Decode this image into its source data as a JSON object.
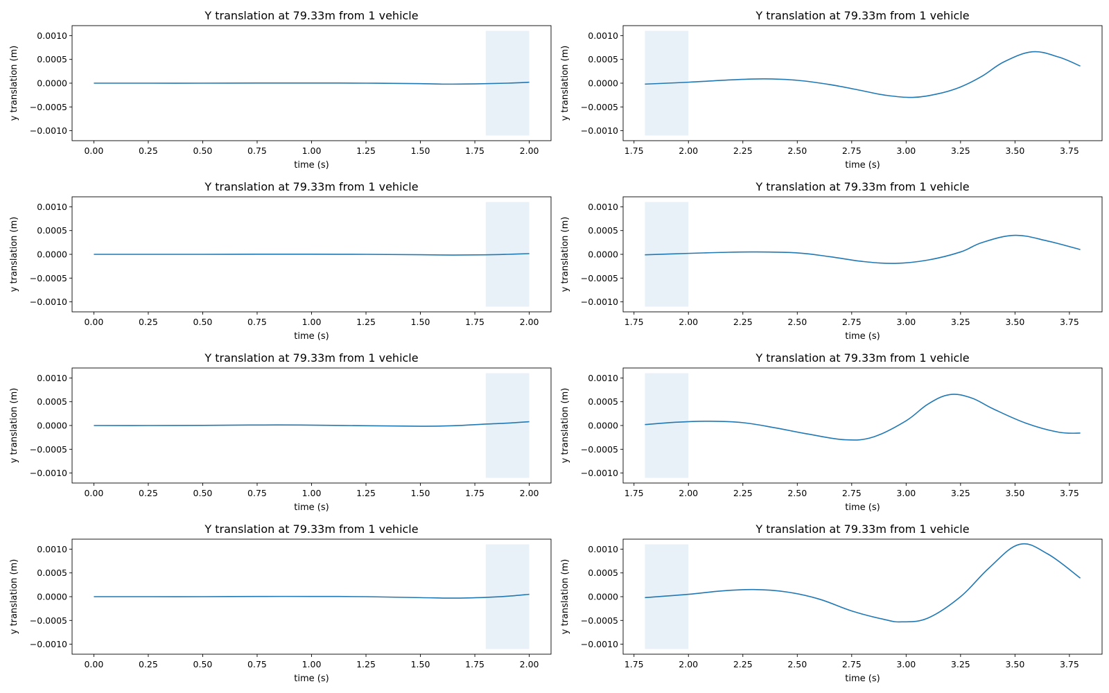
{
  "figure": {
    "rows": 4,
    "cols": 2,
    "line_color": "#1f77b4",
    "shade_color": "#1f77b4"
  },
  "chart_data": [
    {
      "type": "line",
      "title": "Y translation at 79.33m from 1 vehicle",
      "xlabel": "time (s)",
      "ylabel": "y translation (m)",
      "xlim": [
        -0.1,
        2.1
      ],
      "ylim": [
        -0.00121,
        0.00121
      ],
      "xticks": [
        0.0,
        0.25,
        0.5,
        0.75,
        1.0,
        1.25,
        1.5,
        1.75,
        2.0
      ],
      "xtick_labels": [
        "0.00",
        "0.25",
        "0.50",
        "0.75",
        "1.00",
        "1.25",
        "1.50",
        "1.75",
        "2.00"
      ],
      "yticks": [
        0.001,
        0.0005,
        0,
        -0.0005,
        -0.001
      ],
      "ytick_labels": [
        "0.0010",
        "0.0005",
        "0.0000",
        "−0.0005",
        "−0.0010"
      ],
      "shaded_region": {
        "x": [
          1.8,
          2.0
        ],
        "y": [
          -0.0011,
          0.0011
        ]
      },
      "x": [
        0.0,
        0.25,
        0.5,
        0.75,
        1.0,
        1.25,
        1.5,
        1.6,
        1.75,
        1.9,
        2.0
      ],
      "y": [
        0.0,
        0.0,
        0.0,
        3e-06,
        3e-06,
        0.0,
        -1e-05,
        -2e-05,
        -1.5e-05,
        0.0,
        2e-05
      ]
    },
    {
      "type": "line",
      "title": "Y translation at 79.33m from 1 vehicle",
      "xlabel": "time (s)",
      "ylabel": "y translation (m)",
      "xlim": [
        1.7,
        3.9
      ],
      "ylim": [
        -0.00121,
        0.00121
      ],
      "xticks": [
        1.75,
        2.0,
        2.25,
        2.5,
        2.75,
        3.0,
        3.25,
        3.5,
        3.75
      ],
      "xtick_labels": [
        "1.75",
        "2.00",
        "2.25",
        "2.50",
        "2.75",
        "3.00",
        "3.25",
        "3.50",
        "3.75"
      ],
      "yticks": [
        0.001,
        0.0005,
        0,
        -0.0005,
        -0.001
      ],
      "ytick_labels": [
        "0.0010",
        "0.0005",
        "0.0000",
        "−0.0005",
        "−0.0010"
      ],
      "shaded_region": {
        "x": [
          1.8,
          2.0
        ],
        "y": [
          -0.0011,
          0.0011
        ]
      },
      "x": [
        1.8,
        2.0,
        2.2,
        2.35,
        2.5,
        2.65,
        2.8,
        2.9,
        3.03,
        3.15,
        3.25,
        3.35,
        3.45,
        3.58,
        3.7,
        3.8
      ],
      "y": [
        -2e-05,
        2e-05,
        7e-05,
        9e-05,
        6e-05,
        -3e-05,
        -0.00016,
        -0.00025,
        -0.0003,
        -0.00022,
        -8e-05,
        0.00015,
        0.00045,
        0.00066,
        0.00055,
        0.00036
      ]
    },
    {
      "type": "line",
      "title": "Y translation at 79.33m from 1 vehicle",
      "xlabel": "time (s)",
      "ylabel": "y translation (m)",
      "xlim": [
        -0.1,
        2.1
      ],
      "ylim": [
        -0.00121,
        0.00121
      ],
      "xticks": [
        0.0,
        0.25,
        0.5,
        0.75,
        1.0,
        1.25,
        1.5,
        1.75,
        2.0
      ],
      "xtick_labels": [
        "0.00",
        "0.25",
        "0.50",
        "0.75",
        "1.00",
        "1.25",
        "1.50",
        "1.75",
        "2.00"
      ],
      "yticks": [
        0.001,
        0.0005,
        0,
        -0.0005,
        -0.001
      ],
      "ytick_labels": [
        "0.0010",
        "0.0005",
        "0.0000",
        "−0.0005",
        "−0.0010"
      ],
      "shaded_region": {
        "x": [
          1.8,
          2.0
        ],
        "y": [
          -0.0011,
          0.0011
        ]
      },
      "x": [
        0.0,
        0.25,
        0.5,
        0.75,
        1.0,
        1.25,
        1.5,
        1.65,
        1.8,
        1.9,
        2.0
      ],
      "y": [
        0.0,
        0.0,
        0.0,
        2e-06,
        2e-06,
        0.0,
        -8e-06,
        -1.5e-05,
        -1e-05,
        0.0,
        1.5e-05
      ]
    },
    {
      "type": "line",
      "title": "Y translation at 79.33m from 1 vehicle",
      "xlabel": "time (s)",
      "ylabel": "y translation (m)",
      "xlim": [
        1.7,
        3.9
      ],
      "ylim": [
        -0.00121,
        0.00121
      ],
      "xticks": [
        1.75,
        2.0,
        2.25,
        2.5,
        2.75,
        3.0,
        3.25,
        3.5,
        3.75
      ],
      "xtick_labels": [
        "1.75",
        "2.00",
        "2.25",
        "2.50",
        "2.75",
        "3.00",
        "3.25",
        "3.50",
        "3.75"
      ],
      "yticks": [
        0.001,
        0.0005,
        0,
        -0.0005,
        -0.001
      ],
      "ytick_labels": [
        "0.0010",
        "0.0005",
        "0.0000",
        "−0.0005",
        "−0.0010"
      ],
      "shaded_region": {
        "x": [
          1.8,
          2.0
        ],
        "y": [
          -0.0011,
          0.0011
        ]
      },
      "x": [
        1.8,
        2.0,
        2.15,
        2.3,
        2.5,
        2.65,
        2.8,
        2.95,
        3.1,
        3.25,
        3.35,
        3.5,
        3.65,
        3.8
      ],
      "y": [
        -1e-05,
        2e-05,
        4e-05,
        5e-05,
        3e-05,
        -5e-05,
        -0.00015,
        -0.00019,
        -0.00012,
        5e-05,
        0.00025,
        0.0004,
        0.00028,
        0.0001
      ]
    },
    {
      "type": "line",
      "title": "Y translation at 79.33m from 1 vehicle",
      "xlabel": "time (s)",
      "ylabel": "y translation (m)",
      "xlim": [
        -0.1,
        2.1
      ],
      "ylim": [
        -0.00121,
        0.00121
      ],
      "xticks": [
        0.0,
        0.25,
        0.5,
        0.75,
        1.0,
        1.25,
        1.5,
        1.75,
        2.0
      ],
      "xtick_labels": [
        "0.00",
        "0.25",
        "0.50",
        "0.75",
        "1.00",
        "1.25",
        "1.50",
        "1.75",
        "2.00"
      ],
      "yticks": [
        0.001,
        0.0005,
        0,
        -0.0005,
        -0.001
      ],
      "ytick_labels": [
        "0.0010",
        "0.0005",
        "0.0000",
        "−0.0005",
        "−0.0010"
      ],
      "shaded_region": {
        "x": [
          1.8,
          2.0
        ],
        "y": [
          -0.0011,
          0.0011
        ]
      },
      "x": [
        0.0,
        0.25,
        0.5,
        0.75,
        0.95,
        1.25,
        1.5,
        1.65,
        1.8,
        1.9,
        2.0
      ],
      "y": [
        0.0,
        0.0,
        3e-06,
        1e-05,
        1e-05,
        -5e-06,
        -1.5e-05,
        -5e-06,
        3e-05,
        5e-05,
        8e-05
      ]
    },
    {
      "type": "line",
      "title": "Y translation at 79.33m from 1 vehicle",
      "xlabel": "time (s)",
      "ylabel": "y translation (m)",
      "xlim": [
        1.7,
        3.9
      ],
      "ylim": [
        -0.00121,
        0.00121
      ],
      "xticks": [
        1.75,
        2.0,
        2.25,
        2.5,
        2.75,
        3.0,
        3.25,
        3.5,
        3.75
      ],
      "xtick_labels": [
        "1.75",
        "2.00",
        "2.25",
        "2.50",
        "2.75",
        "3.00",
        "3.25",
        "3.50",
        "3.75"
      ],
      "yticks": [
        0.001,
        0.0005,
        0,
        -0.0005,
        -0.001
      ],
      "ytick_labels": [
        "0.0010",
        "0.0005",
        "0.0000",
        "−0.0005",
        "−0.0010"
      ],
      "shaded_region": {
        "x": [
          1.8,
          2.0
        ],
        "y": [
          -0.0011,
          0.0011
        ]
      },
      "x": [
        1.8,
        1.95,
        2.1,
        2.25,
        2.4,
        2.55,
        2.72,
        2.85,
        3.0,
        3.1,
        3.2,
        3.3,
        3.4,
        3.55,
        3.7,
        3.8
      ],
      "y": [
        2e-05,
        7e-05,
        9e-05,
        6e-05,
        -5e-05,
        -0.00018,
        -0.0003,
        -0.00024,
        0.0001,
        0.00045,
        0.00065,
        0.00058,
        0.00035,
        5e-05,
        -0.00014,
        -0.00016
      ]
    },
    {
      "type": "line",
      "title": "Y translation at 79.33m from 1 vehicle",
      "xlabel": "time (s)",
      "ylabel": "y translation (m)",
      "xlim": [
        -0.1,
        2.1
      ],
      "ylim": [
        -0.00121,
        0.00121
      ],
      "xticks": [
        0.0,
        0.25,
        0.5,
        0.75,
        1.0,
        1.25,
        1.5,
        1.75,
        2.0
      ],
      "xtick_labels": [
        "0.00",
        "0.25",
        "0.50",
        "0.75",
        "1.00",
        "1.25",
        "1.50",
        "1.75",
        "2.00"
      ],
      "yticks": [
        0.001,
        0.0005,
        0,
        -0.0005,
        -0.001
      ],
      "ytick_labels": [
        "0.0010",
        "0.0005",
        "0.0000",
        "−0.0005",
        "−0.0010"
      ],
      "shaded_region": {
        "x": [
          1.8,
          2.0
        ],
        "y": [
          -0.0011,
          0.0011
        ]
      },
      "x": [
        0.0,
        0.25,
        0.5,
        0.75,
        1.0,
        1.25,
        1.5,
        1.65,
        1.8,
        1.9,
        2.0
      ],
      "y": [
        0.0,
        0.0,
        0.0,
        5e-06,
        5e-06,
        0.0,
        -2e-05,
        -3e-05,
        -1.5e-05,
        1e-05,
        5e-05
      ]
    },
    {
      "type": "line",
      "title": "Y translation at 79.33m from 1 vehicle",
      "xlabel": "time (s)",
      "ylabel": "y translation (m)",
      "xlim": [
        1.7,
        3.9
      ],
      "ylim": [
        -0.00121,
        0.00121
      ],
      "xticks": [
        1.75,
        2.0,
        2.25,
        2.5,
        2.75,
        3.0,
        3.25,
        3.5,
        3.75
      ],
      "xtick_labels": [
        "1.75",
        "2.00",
        "2.25",
        "2.50",
        "2.75",
        "3.00",
        "3.25",
        "3.50",
        "3.75"
      ],
      "yticks": [
        0.001,
        0.0005,
        0,
        -0.0005,
        -0.001
      ],
      "ytick_labels": [
        "0.0010",
        "0.0005",
        "0.0000",
        "−0.0005",
        "−0.0010"
      ],
      "shaded_region": {
        "x": [
          1.8,
          2.0
        ],
        "y": [
          -0.0011,
          0.0011
        ]
      },
      "x": [
        1.8,
        2.0,
        2.15,
        2.3,
        2.45,
        2.6,
        2.75,
        2.9,
        2.98,
        3.1,
        3.25,
        3.38,
        3.52,
        3.65,
        3.8
      ],
      "y": [
        -2e-05,
        5e-05,
        0.00012,
        0.00015,
        0.0001,
        -5e-05,
        -0.0003,
        -0.00048,
        -0.00053,
        -0.00045,
        0.0,
        0.0006,
        0.0011,
        0.0009,
        0.00039
      ]
    }
  ]
}
